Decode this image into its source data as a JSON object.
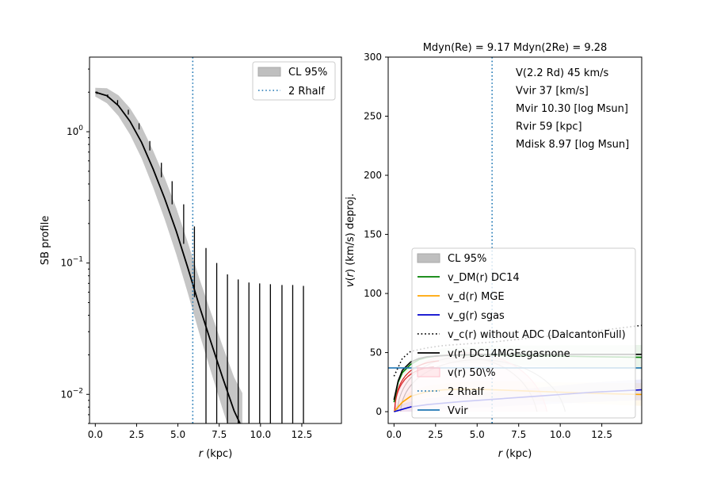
{
  "chart_data": [
    {
      "type": "line",
      "panel": "left",
      "title": "",
      "xlabel": "r (kpc)",
      "ylabel": "SB profile",
      "xscale": "linear",
      "yscale": "log",
      "xlim": [
        -0.35,
        14.9
      ],
      "ylim": [
        0.006,
        3.7
      ],
      "xticks": [
        0.0,
        2.5,
        5.0,
        7.5,
        10.0,
        12.5
      ],
      "xtick_labels": [
        "0.0",
        "2.5",
        "5.0",
        "7.5",
        "10.0",
        "12.5"
      ],
      "ytick_labels": [
        "10^0",
        "10^-1",
        "10^-2"
      ],
      "ytick_values": [
        1,
        0.1,
        0.01
      ],
      "legend": {
        "placement": "upper right",
        "entries": [
          "CL 95%",
          "2 Rhalf"
        ]
      },
      "vline_2rhalf": 5.9,
      "model_curve": {
        "x": [
          0.0,
          0.7,
          1.4,
          2.1,
          2.8,
          3.5,
          4.2,
          4.9,
          5.6,
          6.3,
          7.0,
          7.7,
          8.4,
          8.9
        ],
        "y": [
          2.0,
          1.88,
          1.58,
          1.2,
          0.83,
          0.52,
          0.31,
          0.175,
          0.092,
          0.047,
          0.025,
          0.0135,
          0.0075,
          0.0055
        ]
      },
      "data_points": {
        "x": [
          0.1,
          0.75,
          1.35,
          2.0,
          2.65,
          3.3,
          4.0,
          4.65,
          5.35,
          6.0,
          6.7,
          7.35,
          8.0,
          8.65,
          9.3,
          9.95,
          10.6,
          11.3,
          11.95,
          12.6
        ],
        "y_high": [
          2.02,
          1.92,
          1.74,
          1.47,
          1.16,
          0.85,
          0.58,
          0.42,
          0.28,
          0.19,
          0.13,
          0.1,
          0.082,
          0.075,
          0.071,
          0.07,
          0.069,
          0.068,
          0.068,
          0.067
        ],
        "y_low": [
          1.94,
          1.82,
          1.62,
          1.35,
          1.04,
          0.72,
          0.45,
          0.28,
          0.14,
          0.055,
          0.005,
          0.005,
          0.005,
          0.005,
          0.005,
          0.005,
          0.005,
          0.005,
          0.005,
          0.005
        ]
      }
    },
    {
      "type": "line",
      "panel": "right",
      "title": "Mdyn(Re) = 9.17  Mdyn(2Re) = 9.28",
      "xlabel": "r (kpc)",
      "ylabel": "v(r) (km/s) deproj.",
      "xlim": [
        -0.35,
        14.9
      ],
      "ylim": [
        -10,
        300
      ],
      "xticks": [
        0.0,
        2.5,
        5.0,
        7.5,
        10.0,
        12.5
      ],
      "xtick_labels": [
        "0.0",
        "2.5",
        "5.0",
        "7.5",
        "10.0",
        "12.5"
      ],
      "yticks": [
        0,
        50,
        100,
        150,
        200,
        250,
        300
      ],
      "annotations": [
        "V(2.2 Rd) 45 km/s",
        "Vvir 37 [km/s]",
        "Mvir 10.30 [log Msun]",
        "Rvir 59 [kpc]",
        "Mdisk 8.97 [log Msun]"
      ],
      "legend": {
        "placement": "lower left",
        "entries": [
          {
            "label": "CL 95%",
            "style": "patch",
            "color": "#bfbfbf"
          },
          {
            "label": "v_DM(r) DC14",
            "style": "solid",
            "color": "#008000"
          },
          {
            "label": "v_d(r) MGE",
            "style": "solid",
            "color": "#ffa500"
          },
          {
            "label": "v_g(r) sgas",
            "style": "solid",
            "color": "#0000cd"
          },
          {
            "label": "v_c(r) without ADC (DalcantonFull)",
            "style": "dotted",
            "color": "#000000"
          },
          {
            "label": "v(r) DC14MGEsgasnone",
            "style": "solid",
            "color": "#000000"
          },
          {
            "label": "v(r) 50\\%",
            "style": "patch",
            "color": "#ffc0cb"
          },
          {
            "label": "2 Rhalf",
            "style": "dotted",
            "color": "#1f77b4"
          },
          {
            "label": "Vvir",
            "style": "solid",
            "color": "#1f77b4"
          }
        ]
      },
      "vline_2rhalf": 5.9,
      "hline_vvir": 37,
      "series": [
        {
          "name": "v_DM(r) DC14",
          "color": "#008000",
          "x": [
            0.0,
            0.25,
            0.5,
            1.0,
            1.5,
            2.0,
            2.5,
            3.0,
            4.0,
            5.0,
            6.0,
            8.0,
            10.0,
            12.0,
            14.9
          ],
          "y": [
            8,
            25,
            33,
            40,
            44,
            46,
            47,
            47.5,
            47.8,
            48,
            48,
            47.5,
            47,
            46.5,
            46
          ]
        },
        {
          "name": "v_d(r) MGE",
          "color": "#ffa500",
          "x": [
            0.0,
            0.5,
            1.0,
            2.0,
            3.0,
            4.0,
            5.0,
            6.0,
            8.0,
            10.0,
            12.0,
            14.9
          ],
          "y": [
            0,
            8,
            13,
            17,
            18.5,
            19,
            19,
            18.5,
            17.5,
            16.5,
            15.5,
            14.5
          ]
        },
        {
          "name": "v_g(r) sgas",
          "color": "#0000cd",
          "x": [
            0.0,
            1.0,
            2.0,
            4.0,
            6.0,
            8.0,
            10.0,
            12.0,
            14.9
          ],
          "y": [
            0,
            4,
            6,
            8.5,
            10.5,
            12.5,
            14.5,
            16.5,
            18.5
          ]
        },
        {
          "name": "v_c(r) without ADC (DalcantonFull)",
          "color": "#000000",
          "x": [
            0.0,
            0.5,
            1.0,
            2.0,
            3.0,
            4.0,
            6.0,
            8.0,
            10.0,
            12.0,
            14.9
          ],
          "y": [
            30,
            45,
            51,
            54,
            56,
            57,
            59,
            62,
            65,
            68,
            73
          ]
        },
        {
          "name": "v(r) DC14MGEsgasnone",
          "color": "#000000",
          "x": [
            0.0,
            0.25,
            0.5,
            1.0,
            1.5,
            2.0,
            3.0,
            4.0,
            6.0,
            8.0,
            10.0,
            12.0,
            14.9
          ],
          "y": [
            10,
            26,
            35,
            42,
            45,
            46.5,
            47.5,
            48,
            48.5,
            48.5,
            48.5,
            48.5,
            48.5
          ]
        }
      ]
    }
  ]
}
